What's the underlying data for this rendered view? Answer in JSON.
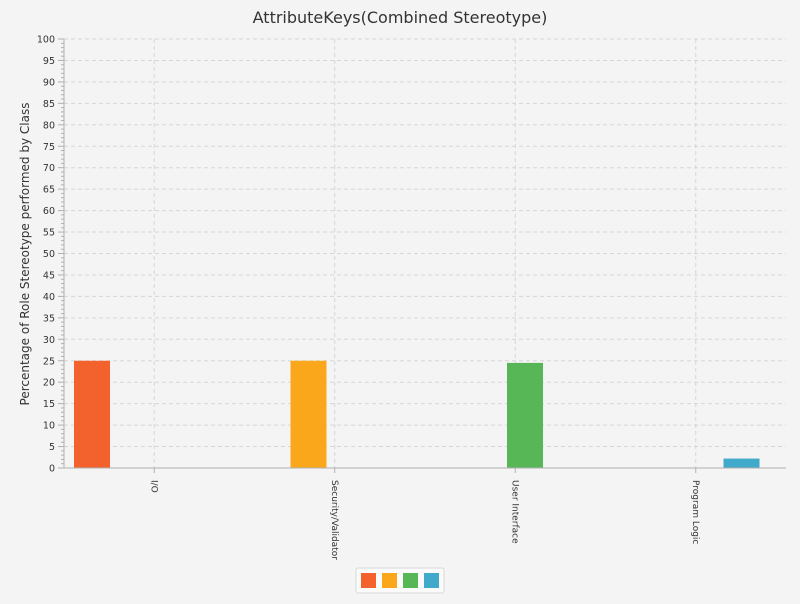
{
  "chart_data": {
    "type": "bar",
    "title": "AttributeKeys(Combined Stereotype)",
    "xlabel": "",
    "ylabel": "Percentage of Role Stereotype performed by Class",
    "ylim": [
      0,
      100
    ],
    "ytick_step": 5,
    "yminor_step": 1,
    "grid": true,
    "legend": "bottom-center",
    "categories": [
      "I/O",
      "Security/Validator",
      "User Interface",
      "Program Logic"
    ],
    "series": [
      {
        "color": "#f3622d",
        "values": [
          25,
          0,
          0,
          0
        ]
      },
      {
        "color": "#fba71b",
        "values": [
          0,
          25,
          0,
          0
        ]
      },
      {
        "color": "#57b757",
        "values": [
          0,
          0,
          24.5,
          0
        ]
      },
      {
        "color": "#41a9c9",
        "values": [
          0,
          0,
          0,
          2.2
        ]
      }
    ]
  }
}
